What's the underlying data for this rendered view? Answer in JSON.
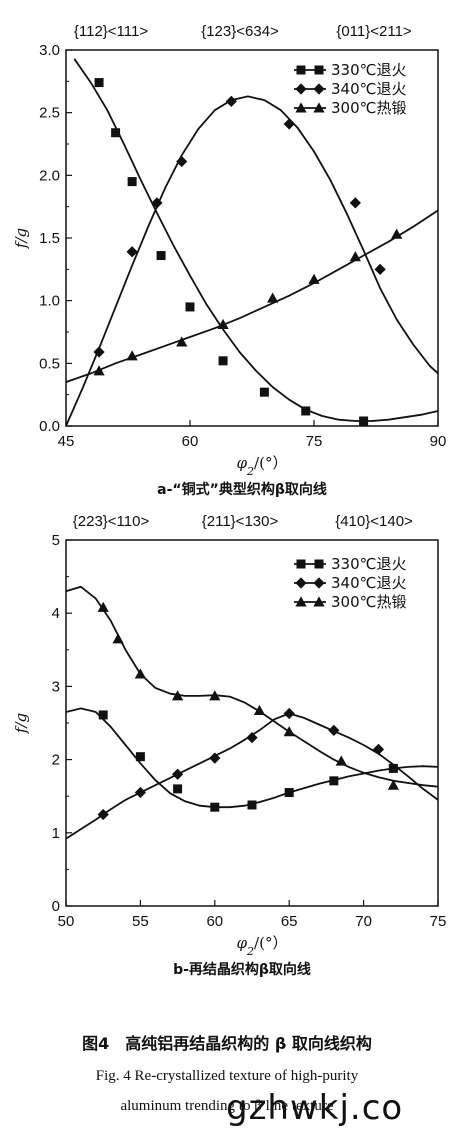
{
  "chart_data": [
    {
      "type": "line",
      "orientation_labels": [
        "{112}<111>",
        "{123}<634>",
        "{011}<211>"
      ],
      "xlabel_symbol": "φ",
      "xlabel_sub": "2",
      "xlabel_unit": "/(°）",
      "ylabel": "f/g",
      "xlim": [
        45,
        90
      ],
      "ylim": [
        0,
        3.0
      ],
      "xticks": [
        45,
        60,
        75,
        90
      ],
      "yticks": [
        0.0,
        0.5,
        1.0,
        1.5,
        2.0,
        2.5,
        3.0
      ],
      "ytick_labels": [
        "0.0",
        "0.5",
        "1.0",
        "1.5",
        "2.0",
        "2.5",
        "3.0"
      ],
      "subtitle": "a-“铜式”典型织构β取向线",
      "legend_position": "top-right",
      "series": [
        {
          "name": "330℃退火",
          "marker": "square",
          "x": [
            46.0,
            48.0,
            50.0,
            52.0,
            54.0,
            56.0,
            58.0,
            60.0,
            62.0,
            64.0,
            66.0,
            68.0,
            70.0,
            72.0,
            74.0,
            76.0,
            78.0,
            80.0,
            82.0,
            84.0,
            86.0,
            88.0,
            90.0
          ],
          "y": [
            2.93,
            2.74,
            2.52,
            2.25,
            1.97,
            1.7,
            1.44,
            1.2,
            0.97,
            0.77,
            0.59,
            0.44,
            0.31,
            0.21,
            0.13,
            0.08,
            0.05,
            0.04,
            0.04,
            0.05,
            0.07,
            0.09,
            0.12
          ],
          "marker_x": [
            49.0,
            51.0,
            53.0,
            56.5,
            60.0,
            64.0,
            69.0,
            74.0,
            81.0
          ],
          "marker_y": [
            2.74,
            2.34,
            1.95,
            1.36,
            0.95,
            0.52,
            0.27,
            0.12,
            0.04
          ]
        },
        {
          "name": "340℃退火",
          "marker": "diamond",
          "x": [
            45.0,
            47.0,
            49.0,
            51.0,
            53.0,
            55.0,
            57.0,
            59.0,
            61.0,
            63.0,
            65.0,
            67.0,
            69.0,
            71.0,
            73.0,
            75.0,
            77.0,
            79.0,
            81.0,
            83.0,
            85.0,
            87.0,
            89.0,
            90.0
          ],
          "y": [
            0.0,
            0.3,
            0.62,
            0.95,
            1.28,
            1.6,
            1.9,
            2.16,
            2.37,
            2.52,
            2.6,
            2.63,
            2.6,
            2.52,
            2.38,
            2.19,
            1.96,
            1.69,
            1.4,
            1.1,
            0.85,
            0.65,
            0.48,
            0.42
          ],
          "marker_x": [
            49.0,
            53.0,
            56.0,
            59.0,
            65.0,
            72.0,
            80.0,
            83.0
          ],
          "marker_y": [
            0.59,
            1.39,
            1.78,
            2.11,
            2.59,
            2.41,
            1.78,
            1.25
          ]
        },
        {
          "name": "300℃热锻",
          "marker": "triangle",
          "x": [
            45.0,
            48.0,
            51.0,
            54.0,
            57.0,
            60.0,
            63.0,
            66.0,
            69.0,
            72.0,
            75.0,
            78.0,
            81.0,
            84.0,
            87.0,
            90.0
          ],
          "y": [
            0.35,
            0.42,
            0.5,
            0.57,
            0.64,
            0.71,
            0.78,
            0.86,
            0.95,
            1.04,
            1.14,
            1.25,
            1.36,
            1.47,
            1.59,
            1.72
          ],
          "marker_x": [
            49.0,
            53.0,
            59.0,
            64.0,
            70.0,
            75.0,
            80.0,
            85.0
          ],
          "marker_y": [
            0.44,
            0.56,
            0.67,
            0.81,
            1.02,
            1.17,
            1.35,
            1.53
          ]
        }
      ]
    },
    {
      "type": "line",
      "orientation_labels": [
        "{223}<110>",
        "{211}<130>",
        "{410}<140>"
      ],
      "xlabel_symbol": "φ",
      "xlabel_sub": "2",
      "xlabel_unit": "/(°）",
      "ylabel": "f/g",
      "xlim": [
        50,
        75
      ],
      "ylim": [
        0,
        5
      ],
      "xticks": [
        50,
        55,
        60,
        65,
        70,
        75
      ],
      "yticks": [
        0,
        1,
        2,
        3,
        4,
        5
      ],
      "ytick_labels": [
        "0",
        "1",
        "2",
        "3",
        "4",
        "5"
      ],
      "subtitle": "b-再结晶织构β取向线",
      "legend_position": "top-right",
      "series": [
        {
          "name": "330℃退火",
          "marker": "square",
          "x": [
            50.0,
            51.0,
            52.0,
            53.0,
            54.0,
            55.0,
            56.0,
            57.0,
            58.0,
            59.0,
            60.0,
            61.0,
            62.0,
            63.0,
            64.0,
            65.0,
            66.0,
            67.0,
            68.0,
            69.0,
            70.0,
            71.0,
            72.0,
            73.0,
            74.0,
            75.0
          ],
          "y": [
            2.65,
            2.7,
            2.65,
            2.45,
            2.2,
            1.95,
            1.72,
            1.54,
            1.43,
            1.37,
            1.35,
            1.35,
            1.37,
            1.42,
            1.48,
            1.55,
            1.61,
            1.67,
            1.72,
            1.77,
            1.81,
            1.85,
            1.88,
            1.9,
            1.91,
            1.9
          ],
          "marker_x": [
            52.5,
            55.0,
            57.5,
            60.0,
            62.5,
            65.0,
            68.0,
            72.0
          ],
          "marker_y": [
            2.61,
            2.04,
            1.6,
            1.35,
            1.38,
            1.55,
            1.71,
            1.88
          ]
        },
        {
          "name": "340℃退火",
          "marker": "diamond",
          "x": [
            50.0,
            51.0,
            52.0,
            53.0,
            54.0,
            55.0,
            56.0,
            57.0,
            58.0,
            59.0,
            60.0,
            61.0,
            62.0,
            63.0,
            64.0,
            65.0,
            66.0,
            67.0,
            68.0,
            69.0,
            70.0,
            71.0,
            72.0,
            73.0,
            74.0,
            75.0
          ],
          "y": [
            0.92,
            1.05,
            1.18,
            1.32,
            1.45,
            1.55,
            1.65,
            1.75,
            1.85,
            1.95,
            2.05,
            2.15,
            2.27,
            2.4,
            2.55,
            2.63,
            2.57,
            2.48,
            2.39,
            2.3,
            2.2,
            2.08,
            1.93,
            1.77,
            1.6,
            1.45
          ],
          "marker_x": [
            52.5,
            55.0,
            57.5,
            60.0,
            62.5,
            65.0,
            68.0,
            71.0
          ],
          "marker_y": [
            1.25,
            1.55,
            1.8,
            2.02,
            2.3,
            2.63,
            2.4,
            2.14
          ]
        },
        {
          "name": "300℃热锻",
          "marker": "triangle",
          "x": [
            50.0,
            51.0,
            52.0,
            53.0,
            54.0,
            55.0,
            56.0,
            57.0,
            58.0,
            59.0,
            60.0,
            61.0,
            62.0,
            63.0,
            64.0,
            65.0,
            66.0,
            67.0,
            68.0,
            69.0,
            70.0,
            71.0,
            72.0,
            73.0,
            74.0,
            75.0
          ],
          "y": [
            4.3,
            4.36,
            4.2,
            3.9,
            3.5,
            3.17,
            2.98,
            2.9,
            2.87,
            2.87,
            2.88,
            2.86,
            2.78,
            2.66,
            2.52,
            2.38,
            2.25,
            2.12,
            2.0,
            1.9,
            1.82,
            1.76,
            1.71,
            1.68,
            1.65,
            1.63
          ],
          "marker_x": [
            52.5,
            53.5,
            55.0,
            57.5,
            60.0,
            63.0,
            65.0,
            68.5,
            72.0
          ],
          "marker_y": [
            4.08,
            3.65,
            3.17,
            2.87,
            2.87,
            2.67,
            2.38,
            1.98,
            1.65
          ]
        }
      ]
    }
  ],
  "caption": {
    "cn": "图4　高纯铝再结晶织构的 β 取向线织构",
    "en_line1": "Fig. 4 Re-crystallized texture of high-purity",
    "en_line2": "aluminum trending to β line texture"
  },
  "watermark": "gzhwkj.co"
}
